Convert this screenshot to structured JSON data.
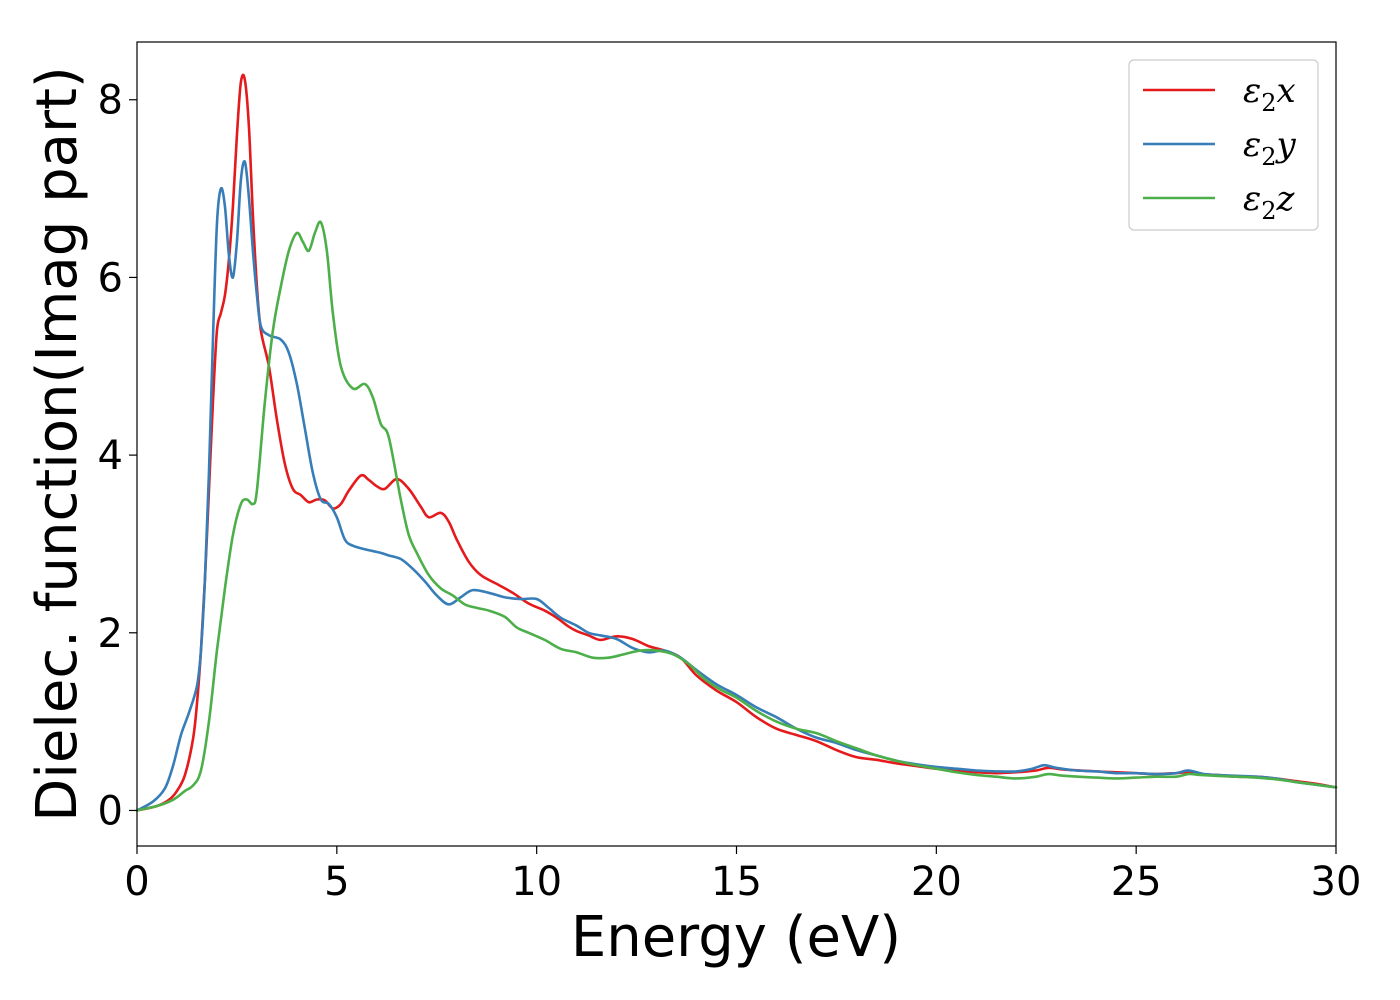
{
  "chart_data": {
    "type": "line",
    "title": "",
    "xlabel": "Energy (eV)",
    "ylabel": "Dielec. function(Imag part)",
    "xlim": [
      0,
      30
    ],
    "ylim": [
      -0.4,
      8.65
    ],
    "xticks": [
      0,
      5,
      10,
      15,
      20,
      25,
      30
    ],
    "yticks": [
      0,
      2,
      4,
      6,
      8
    ],
    "grid": false,
    "legend_position": "top-right",
    "series": [
      {
        "name": "ε2x",
        "label_base": "ε",
        "label_sub": "2",
        "label_var": "x",
        "color": "#e41a1c",
        "x": [
          0,
          0.5,
          0.8,
          1.0,
          1.2,
          1.4,
          1.5,
          1.6,
          1.7,
          1.8,
          1.9,
          2.0,
          2.1,
          2.2,
          2.3,
          2.4,
          2.5,
          2.6,
          2.7,
          2.8,
          2.9,
          3.0,
          3.1,
          3.3,
          3.5,
          3.7,
          3.9,
          4.1,
          4.3,
          4.5,
          4.7,
          4.9,
          5.1,
          5.3,
          5.6,
          5.8,
          6.0,
          6.2,
          6.5,
          6.8,
          7.1,
          7.3,
          7.6,
          7.8,
          8.0,
          8.3,
          8.6,
          9.0,
          9.4,
          9.8,
          10.2,
          10.5,
          10.8,
          11.0,
          11.3,
          11.6,
          12.0,
          12.4,
          12.8,
          13.2,
          13.6,
          14.0,
          14.5,
          15.0,
          15.5,
          16.0,
          16.5,
          17.0,
          17.5,
          18.0,
          18.5,
          19.0,
          19.5,
          20.0,
          20.5,
          21.0,
          21.5,
          22.0,
          22.5,
          22.8,
          23.2,
          24.0,
          24.5,
          25.0,
          25.5,
          26.0,
          26.3,
          26.6,
          27.0,
          27.5,
          28.0,
          28.5,
          29.0,
          29.5,
          30.0
        ],
        "values": [
          0,
          0.05,
          0.12,
          0.22,
          0.4,
          0.8,
          1.2,
          1.8,
          2.6,
          3.6,
          4.6,
          5.4,
          5.6,
          5.8,
          6.2,
          6.8,
          7.6,
          8.2,
          8.22,
          7.7,
          6.7,
          5.9,
          5.4,
          5.0,
          4.4,
          3.9,
          3.62,
          3.55,
          3.47,
          3.5,
          3.49,
          3.4,
          3.45,
          3.6,
          3.77,
          3.72,
          3.65,
          3.62,
          3.73,
          3.62,
          3.42,
          3.3,
          3.35,
          3.25,
          3.05,
          2.8,
          2.65,
          2.55,
          2.45,
          2.33,
          2.25,
          2.17,
          2.07,
          2.02,
          1.97,
          1.92,
          1.96,
          1.93,
          1.85,
          1.8,
          1.72,
          1.52,
          1.35,
          1.22,
          1.05,
          0.92,
          0.85,
          0.78,
          0.68,
          0.6,
          0.57,
          0.53,
          0.5,
          0.47,
          0.45,
          0.43,
          0.42,
          0.43,
          0.45,
          0.48,
          0.46,
          0.44,
          0.43,
          0.42,
          0.41,
          0.42,
          0.43,
          0.41,
          0.4,
          0.38,
          0.38,
          0.36,
          0.33,
          0.3,
          0.26
        ]
      },
      {
        "name": "ε2y",
        "label_base": "ε",
        "label_sub": "2",
        "label_var": "y",
        "color": "#377eb8",
        "x": [
          0,
          0.4,
          0.7,
          0.9,
          1.1,
          1.3,
          1.5,
          1.6,
          1.7,
          1.8,
          1.9,
          2.0,
          2.1,
          2.2,
          2.3,
          2.4,
          2.5,
          2.6,
          2.7,
          2.8,
          2.9,
          3.0,
          3.1,
          3.3,
          3.6,
          3.8,
          4.0,
          4.2,
          4.4,
          4.6,
          4.8,
          5.0,
          5.2,
          5.4,
          5.7,
          5.9,
          6.1,
          6.3,
          6.6,
          6.9,
          7.2,
          7.5,
          7.8,
          8.1,
          8.4,
          8.8,
          9.2,
          9.6,
          10.0,
          10.3,
          10.6,
          11.0,
          11.3,
          11.6,
          12.0,
          12.4,
          12.8,
          13.2,
          13.6,
          14.0,
          14.5,
          15.0,
          15.5,
          16.0,
          16.5,
          17.0,
          17.5,
          18.0,
          18.5,
          19.0,
          19.5,
          20.0,
          20.5,
          21.0,
          21.5,
          22.0,
          22.4,
          22.7,
          23.0,
          23.5,
          24.0,
          24.5,
          25.0,
          25.5,
          26.0,
          26.3,
          26.7,
          27.0,
          27.5,
          28.0,
          28.5,
          29.0,
          29.5,
          30.0
        ],
        "values": [
          0,
          0.1,
          0.25,
          0.5,
          0.85,
          1.1,
          1.4,
          1.8,
          2.6,
          3.8,
          5.3,
          6.6,
          7.0,
          6.8,
          6.25,
          6.0,
          6.4,
          7.1,
          7.3,
          6.9,
          6.3,
          5.8,
          5.45,
          5.35,
          5.3,
          5.15,
          4.8,
          4.3,
          3.8,
          3.5,
          3.45,
          3.3,
          3.05,
          2.98,
          2.94,
          2.92,
          2.9,
          2.87,
          2.83,
          2.72,
          2.58,
          2.42,
          2.32,
          2.4,
          2.48,
          2.45,
          2.4,
          2.38,
          2.38,
          2.28,
          2.17,
          2.08,
          2.0,
          1.97,
          1.93,
          1.83,
          1.78,
          1.8,
          1.72,
          1.58,
          1.42,
          1.3,
          1.16,
          1.05,
          0.92,
          0.82,
          0.76,
          0.68,
          0.62,
          0.56,
          0.52,
          0.49,
          0.47,
          0.45,
          0.44,
          0.44,
          0.47,
          0.51,
          0.48,
          0.45,
          0.44,
          0.42,
          0.42,
          0.41,
          0.42,
          0.45,
          0.41,
          0.4,
          0.39,
          0.38,
          0.36,
          0.32,
          0.29,
          0.26
        ]
      },
      {
        "name": "ε2z",
        "label_base": "ε",
        "label_sub": "2",
        "label_var": "z",
        "color": "#4daf4a",
        "x": [
          0,
          0.5,
          0.9,
          1.2,
          1.4,
          1.6,
          1.8,
          2.0,
          2.2,
          2.4,
          2.6,
          2.75,
          2.9,
          3.0,
          3.2,
          3.4,
          3.6,
          3.8,
          4.0,
          4.15,
          4.3,
          4.45,
          4.6,
          4.75,
          4.9,
          5.1,
          5.4,
          5.7,
          5.9,
          6.1,
          6.3,
          6.6,
          6.8,
          7.0,
          7.3,
          7.6,
          7.9,
          8.2,
          8.5,
          8.8,
          9.2,
          9.5,
          9.8,
          10.2,
          10.6,
          11.0,
          11.4,
          11.8,
          12.2,
          12.6,
          13.0,
          13.4,
          13.8,
          14.2,
          14.6,
          15.0,
          15.5,
          16.0,
          16.5,
          17.0,
          17.5,
          18.0,
          18.5,
          19.0,
          19.5,
          20.0,
          20.5,
          21.0,
          21.5,
          22.0,
          22.5,
          22.8,
          23.2,
          24.0,
          24.5,
          25.0,
          25.5,
          26.0,
          26.3,
          26.6,
          27.0,
          27.5,
          28.0,
          28.5,
          29.0,
          29.5,
          30.0
        ],
        "values": [
          0,
          0.05,
          0.12,
          0.22,
          0.28,
          0.45,
          1.0,
          1.8,
          2.5,
          3.1,
          3.45,
          3.5,
          3.45,
          3.6,
          4.6,
          5.4,
          5.9,
          6.3,
          6.5,
          6.4,
          6.3,
          6.5,
          6.62,
          6.3,
          5.6,
          5.0,
          4.75,
          4.8,
          4.65,
          4.35,
          4.2,
          3.5,
          3.1,
          2.9,
          2.65,
          2.5,
          2.42,
          2.32,
          2.28,
          2.25,
          2.18,
          2.06,
          2.0,
          1.92,
          1.82,
          1.78,
          1.72,
          1.72,
          1.76,
          1.8,
          1.8,
          1.76,
          1.65,
          1.48,
          1.36,
          1.27,
          1.12,
          1.0,
          0.92,
          0.87,
          0.78,
          0.7,
          0.62,
          0.56,
          0.51,
          0.47,
          0.43,
          0.4,
          0.38,
          0.36,
          0.38,
          0.41,
          0.39,
          0.37,
          0.36,
          0.37,
          0.38,
          0.38,
          0.41,
          0.4,
          0.39,
          0.38,
          0.37,
          0.35,
          0.32,
          0.29,
          0.26
        ]
      }
    ]
  }
}
